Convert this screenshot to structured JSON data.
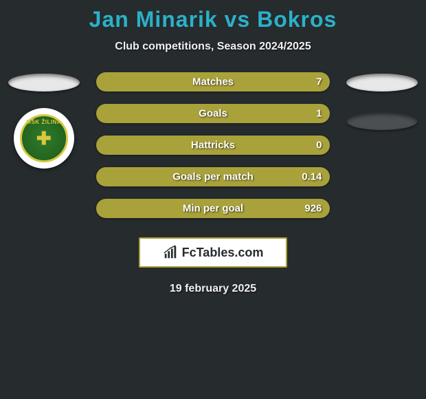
{
  "title": "Jan Minarik vs Bokros",
  "subtitle": "Club competitions, Season 2024/2025",
  "date_text": "19 february 2025",
  "footer_brand": "FcTables.com",
  "colors": {
    "background": "#262b2e",
    "title": "#2bb1c9",
    "text": "#f0f0f0",
    "left_bar": "#a9a23a",
    "right_bar": "#4a4f52",
    "oval_light": "#e8e8e8",
    "oval_dark": "#4a4f52",
    "footer_border": "#a6a03a"
  },
  "left_side": {
    "has_oval": true,
    "badge": {
      "name": "MSK Zilina",
      "top_text": "MŠK ŽILINA"
    }
  },
  "right_side": {
    "ovals": [
      "light",
      "dark"
    ]
  },
  "stats": [
    {
      "label": "Matches",
      "left_val": "",
      "right_val": "7",
      "left_pct": 3,
      "right_pct": 97
    },
    {
      "label": "Goals",
      "left_val": "",
      "right_val": "1",
      "left_pct": 3,
      "right_pct": 97
    },
    {
      "label": "Hattricks",
      "left_val": "",
      "right_val": "0",
      "left_pct": 3,
      "right_pct": 97
    },
    {
      "label": "Goals per match",
      "left_val": "",
      "right_val": "0.14",
      "left_pct": 3,
      "right_pct": 97
    },
    {
      "label": "Min per goal",
      "left_val": "",
      "right_val": "926",
      "left_pct": 3,
      "right_pct": 97
    }
  ]
}
